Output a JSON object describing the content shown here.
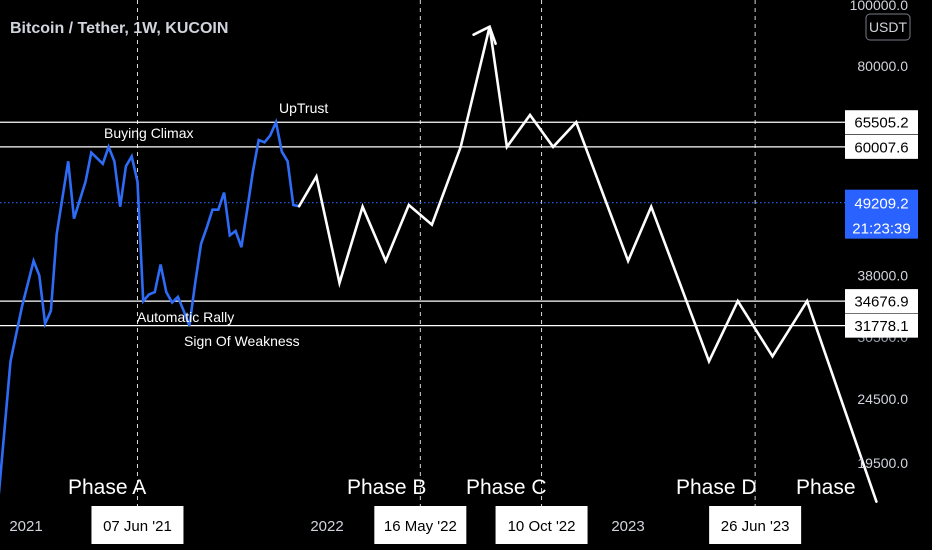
{
  "header": {
    "title": "Bitcoin / Tether, 1W, KUCOIN",
    "currency_badge": "USDT"
  },
  "colors": {
    "background": "#000000",
    "price_line": "#2f6cf6",
    "projection_line": "#ffffff",
    "last_price_tag": "#2962ff",
    "text": "#d1d4dc"
  },
  "chart_data": {
    "type": "line",
    "symbol": "BTCUSDT",
    "timeframe": "1W",
    "exchange": "KUCOIN",
    "y_axis_labels": [
      "100000.0",
      "80000.0",
      "38000.0",
      "24500.0",
      "19500.0"
    ],
    "x_axis_labels": [
      "2021",
      "2022",
      "2023"
    ],
    "highlighted_dates": [
      "07 Jun '21",
      "16 May '22",
      "10 Oct '22",
      "26 Jun '23"
    ],
    "horizontal_levels": [
      {
        "value": 65505.2,
        "label": "65505.2"
      },
      {
        "value": 60007.6,
        "label": "60007.6"
      },
      {
        "value": 34676.9,
        "label": "34676.9"
      },
      {
        "value": 31778.1,
        "label": "31778.1"
      }
    ],
    "last_price": {
      "value": 49209.2,
      "label": "49209.2",
      "countdown": "21:23:39"
    },
    "annotations": [
      "Buying Climax",
      "UpTrust",
      "Automatic Rally",
      "Sign Of Weakness"
    ],
    "phases": [
      "Phase A",
      "Phase B",
      "Phase C",
      "Phase D",
      "Phase"
    ],
    "series": [
      {
        "kind": "price",
        "points": [
          [
            "2020-12-21",
            17500
          ],
          [
            "2021-01-04",
            28000
          ],
          [
            "2021-01-18",
            34000
          ],
          [
            "2021-02-01",
            40000
          ],
          [
            "2021-02-08",
            38000
          ],
          [
            "2021-02-15",
            32000
          ],
          [
            "2021-02-22",
            33500
          ],
          [
            "2021-03-01",
            44000
          ],
          [
            "2021-03-15",
            57000
          ],
          [
            "2021-03-22",
            46500
          ],
          [
            "2021-04-05",
            53000
          ],
          [
            "2021-04-12",
            58800
          ],
          [
            "2021-04-26",
            56500
          ],
          [
            "2021-05-03",
            60007.6
          ],
          [
            "2021-05-10",
            57000
          ],
          [
            "2021-05-17",
            48500
          ],
          [
            "2021-05-24",
            56000
          ],
          [
            "2021-05-31",
            58000
          ],
          [
            "2021-06-07",
            53000
          ],
          [
            "2021-06-14",
            34676.9
          ],
          [
            "2021-06-21",
            35500
          ],
          [
            "2021-06-28",
            35800
          ],
          [
            "2021-07-05",
            39500
          ],
          [
            "2021-07-12",
            35800
          ],
          [
            "2021-07-19",
            34500
          ],
          [
            "2021-07-26",
            35200
          ],
          [
            "2021-08-02",
            33500
          ],
          [
            "2021-08-09",
            31778.1
          ],
          [
            "2021-08-16",
            37000
          ],
          [
            "2021-08-23",
            42500
          ],
          [
            "2021-08-30",
            45000
          ],
          [
            "2021-09-06",
            48000
          ],
          [
            "2021-09-13",
            48000
          ],
          [
            "2021-09-20",
            51000
          ],
          [
            "2021-09-27",
            43800
          ],
          [
            "2021-10-04",
            44500
          ],
          [
            "2021-10-11",
            42000
          ],
          [
            "2021-10-18",
            48000
          ],
          [
            "2021-10-25",
            55000
          ],
          [
            "2021-11-01",
            61500
          ],
          [
            "2021-11-08",
            61000
          ],
          [
            "2021-11-15",
            62500
          ],
          [
            "2021-11-22",
            65505.2
          ],
          [
            "2021-11-29",
            59000
          ],
          [
            "2021-12-06",
            57000
          ],
          [
            "2021-12-13",
            48800
          ],
          [
            "2021-12-20",
            48600
          ]
        ]
      },
      {
        "kind": "projection",
        "points": [
          [
            "2021-12-20",
            48600
          ],
          [
            "2022-01-10",
            54000
          ],
          [
            "2022-02-07",
            37000
          ],
          [
            "2022-03-07",
            48500
          ],
          [
            "2022-04-04",
            40000
          ],
          [
            "2022-05-02",
            48800
          ],
          [
            "2022-05-30",
            45500
          ],
          [
            "2022-07-04",
            60000
          ],
          [
            "2022-08-08",
            92000
          ],
          [
            "2022-08-29",
            60007.6
          ],
          [
            "2022-09-26",
            67200
          ],
          [
            "2022-10-24",
            60007.6
          ],
          [
            "2022-11-21",
            65505.2
          ],
          [
            "2023-01-23",
            40000
          ],
          [
            "2023-02-20",
            48500
          ],
          [
            "2023-05-01",
            28000
          ],
          [
            "2023-06-05",
            34676.9
          ],
          [
            "2023-07-17",
            28500
          ],
          [
            "2023-08-28",
            34676.9
          ],
          [
            "2023-11-20",
            17000
          ]
        ]
      }
    ]
  }
}
